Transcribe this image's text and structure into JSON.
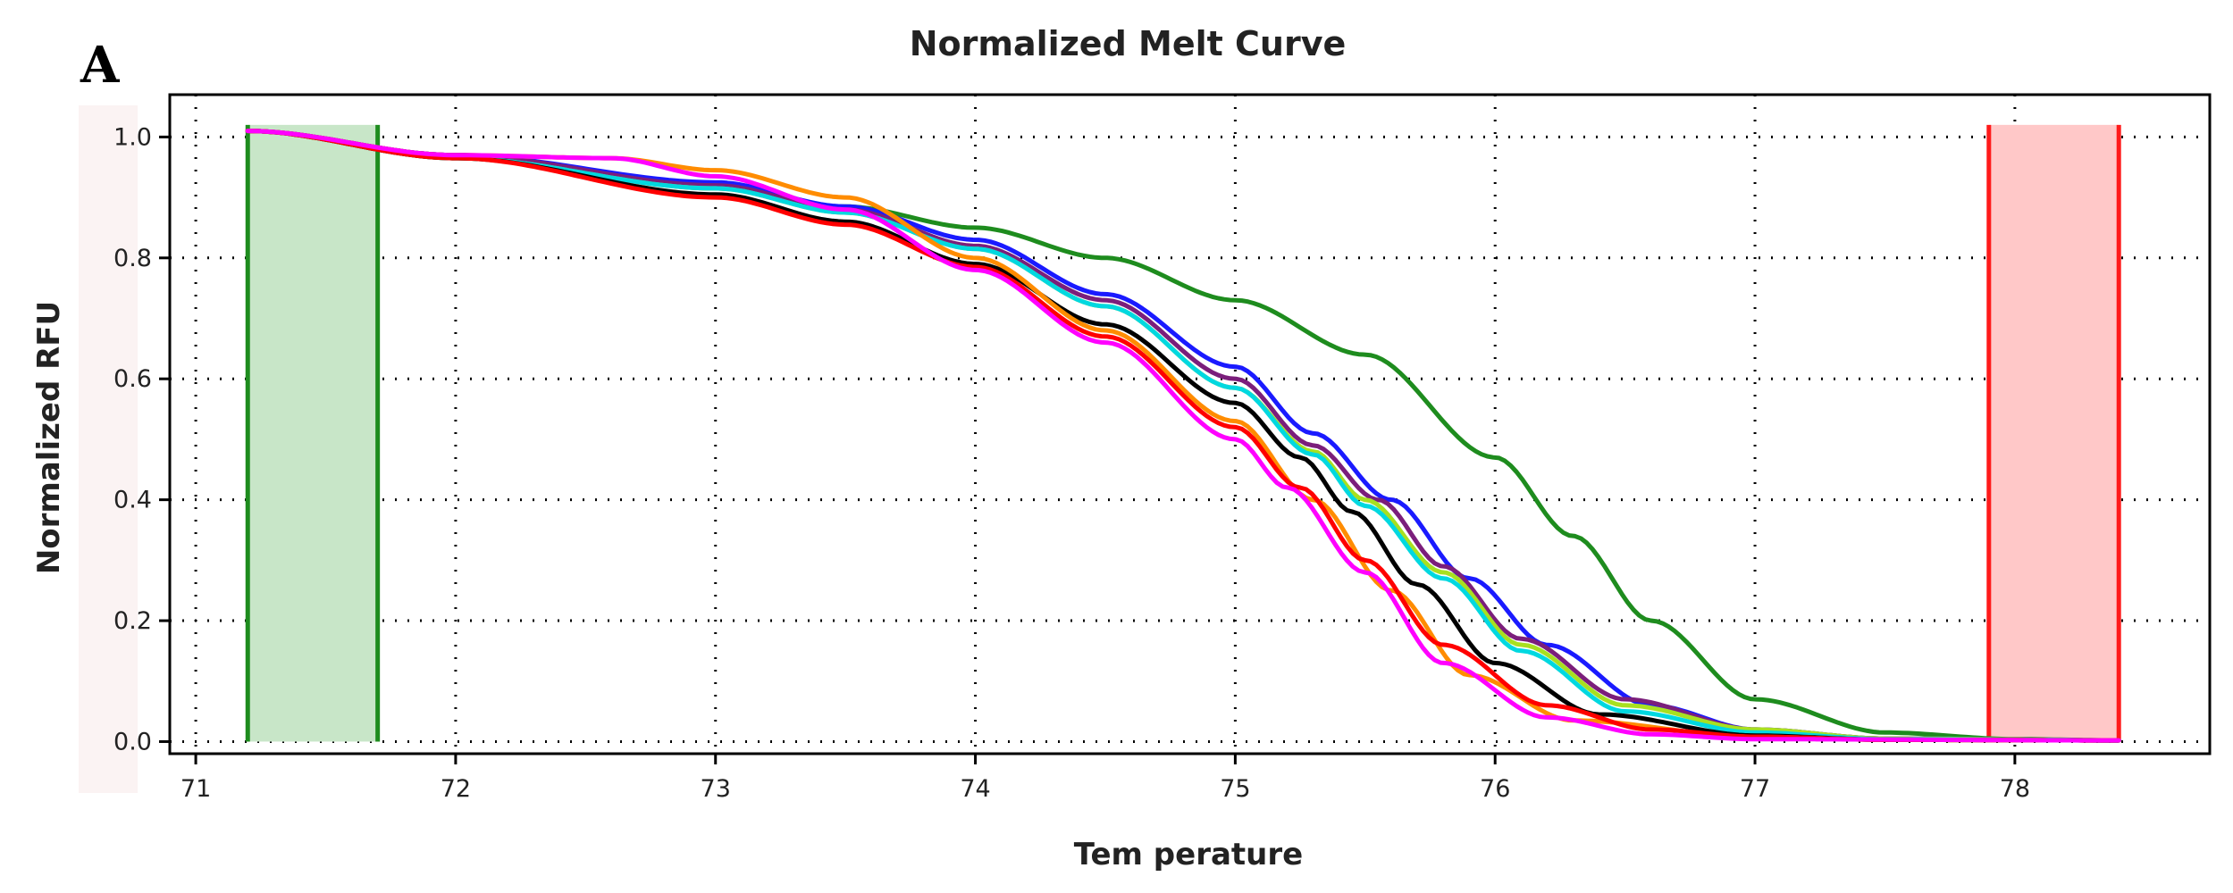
{
  "panel_label": "A",
  "chart_data": {
    "type": "line",
    "title": "Normalized Melt Curve",
    "xlabel": "Tem perature",
    "ylabel": "Normalized RFU",
    "xlim": [
      70.9,
      78.75
    ],
    "ylim": [
      -0.02,
      1.07
    ],
    "x_ticks": [
      71,
      72,
      73,
      74,
      75,
      76,
      77,
      78
    ],
    "x_tick_labels": [
      "71",
      "72",
      "73",
      "74",
      "75",
      "76",
      "77",
      "78"
    ],
    "y_ticks": [
      0.0,
      0.2,
      0.4,
      0.6,
      0.8,
      1.0
    ],
    "y_tick_labels": [
      "0.0",
      "0.2",
      "0.4",
      "0.6",
      "0.8",
      "1.0"
    ],
    "grid": true,
    "regions": [
      {
        "name": "pre-melt",
        "x_start": 71.2,
        "x_end": 71.7,
        "y_top": 1.02,
        "fill": "#c8e6c8",
        "edge": "#1e8c1e"
      },
      {
        "name": "post-melt",
        "x_start": 77.9,
        "x_end": 78.4,
        "y_top": 1.02,
        "fill": "#ffc8c8",
        "edge": "#ff1a1a"
      }
    ],
    "series": [
      {
        "name": "green",
        "color": "#1e8c1e",
        "tm": 76.22,
        "width": 0.3,
        "x": [
          71.2,
          72.0,
          73.0,
          73.5,
          74.0,
          74.5,
          75.0,
          75.5,
          76.0,
          76.3,
          76.6,
          77.0,
          77.5,
          78.0,
          78.4
        ],
        "y": [
          1.01,
          0.97,
          0.915,
          0.885,
          0.85,
          0.8,
          0.73,
          0.64,
          0.47,
          0.34,
          0.2,
          0.07,
          0.015,
          0.004,
          0.002
        ]
      },
      {
        "name": "blue",
        "color": "#1a1aff",
        "tm": 75.62,
        "width": 0.27,
        "x": [
          71.2,
          72.0,
          73.0,
          73.5,
          74.0,
          74.5,
          75.0,
          75.3,
          75.6,
          75.9,
          76.2,
          76.6,
          77.0,
          77.5,
          78.4
        ],
        "y": [
          1.01,
          0.97,
          0.925,
          0.885,
          0.83,
          0.74,
          0.62,
          0.51,
          0.4,
          0.27,
          0.16,
          0.06,
          0.02,
          0.005,
          0.002
        ]
      },
      {
        "name": "purple",
        "color": "#7b1e7b",
        "tm": 75.55,
        "width": 0.26,
        "x": [
          71.2,
          72.0,
          73.0,
          73.5,
          74.0,
          74.5,
          75.0,
          75.3,
          75.55,
          75.8,
          76.1,
          76.5,
          77.0,
          77.5,
          78.4
        ],
        "y": [
          1.01,
          0.97,
          0.92,
          0.88,
          0.82,
          0.73,
          0.6,
          0.49,
          0.4,
          0.29,
          0.17,
          0.07,
          0.02,
          0.005,
          0.002
        ]
      },
      {
        "name": "yellow-green",
        "color": "#a8e020",
        "tm": 75.5,
        "width": 0.26,
        "x": [
          71.2,
          72.0,
          73.0,
          73.5,
          74.0,
          74.5,
          75.0,
          75.3,
          75.5,
          75.8,
          76.1,
          76.5,
          77.0,
          77.5,
          78.4
        ],
        "y": [
          1.01,
          0.965,
          0.915,
          0.875,
          0.815,
          0.72,
          0.585,
          0.48,
          0.4,
          0.28,
          0.16,
          0.06,
          0.02,
          0.005,
          0.002
        ]
      },
      {
        "name": "cyan",
        "color": "#00d8e0",
        "tm": 75.48,
        "width": 0.26,
        "x": [
          71.2,
          72.0,
          73.0,
          73.5,
          74.0,
          74.5,
          75.0,
          75.3,
          75.5,
          75.8,
          76.1,
          76.5,
          77.0,
          77.5,
          78.4
        ],
        "y": [
          1.01,
          0.965,
          0.915,
          0.875,
          0.815,
          0.72,
          0.585,
          0.475,
          0.39,
          0.27,
          0.15,
          0.05,
          0.015,
          0.004,
          0.002
        ]
      },
      {
        "name": "black",
        "color": "#000000",
        "tm": 75.4,
        "width": 0.25,
        "x": [
          71.2,
          72.0,
          73.0,
          73.5,
          74.0,
          74.5,
          75.0,
          75.25,
          75.45,
          75.7,
          76.0,
          76.4,
          77.0,
          77.5,
          78.4
        ],
        "y": [
          1.01,
          0.965,
          0.905,
          0.86,
          0.79,
          0.69,
          0.56,
          0.47,
          0.38,
          0.26,
          0.13,
          0.045,
          0.01,
          0.003,
          0.002
        ]
      },
      {
        "name": "orange",
        "color": "#ff8c00",
        "tm": 75.3,
        "width": 0.24,
        "x": [
          71.2,
          72.0,
          72.6,
          73.0,
          73.5,
          74.0,
          74.5,
          75.0,
          75.3,
          75.6,
          75.9,
          76.3,
          77.0,
          77.5,
          78.4
        ],
        "y": [
          1.01,
          0.97,
          0.965,
          0.945,
          0.9,
          0.8,
          0.68,
          0.53,
          0.4,
          0.25,
          0.11,
          0.035,
          0.008,
          0.003,
          0.002
        ]
      },
      {
        "name": "red",
        "color": "#ff0000",
        "tm": 75.28,
        "width": 0.24,
        "x": [
          71.2,
          72.0,
          73.0,
          73.5,
          74.0,
          74.5,
          75.0,
          75.25,
          75.5,
          75.8,
          76.2,
          76.6,
          77.0,
          77.5,
          78.4
        ],
        "y": [
          1.01,
          0.965,
          0.9,
          0.855,
          0.785,
          0.67,
          0.52,
          0.42,
          0.3,
          0.16,
          0.06,
          0.02,
          0.008,
          0.003,
          0.002
        ]
      },
      {
        "name": "magenta",
        "color": "#ff00ff",
        "tm": 75.22,
        "width": 0.24,
        "x": [
          71.2,
          72.0,
          72.6,
          73.0,
          73.5,
          74.0,
          74.5,
          75.0,
          75.2,
          75.5,
          75.8,
          76.2,
          76.6,
          77.0,
          78.4
        ],
        "y": [
          1.01,
          0.97,
          0.965,
          0.935,
          0.88,
          0.78,
          0.66,
          0.5,
          0.42,
          0.28,
          0.13,
          0.04,
          0.012,
          0.004,
          0.002
        ]
      }
    ]
  }
}
